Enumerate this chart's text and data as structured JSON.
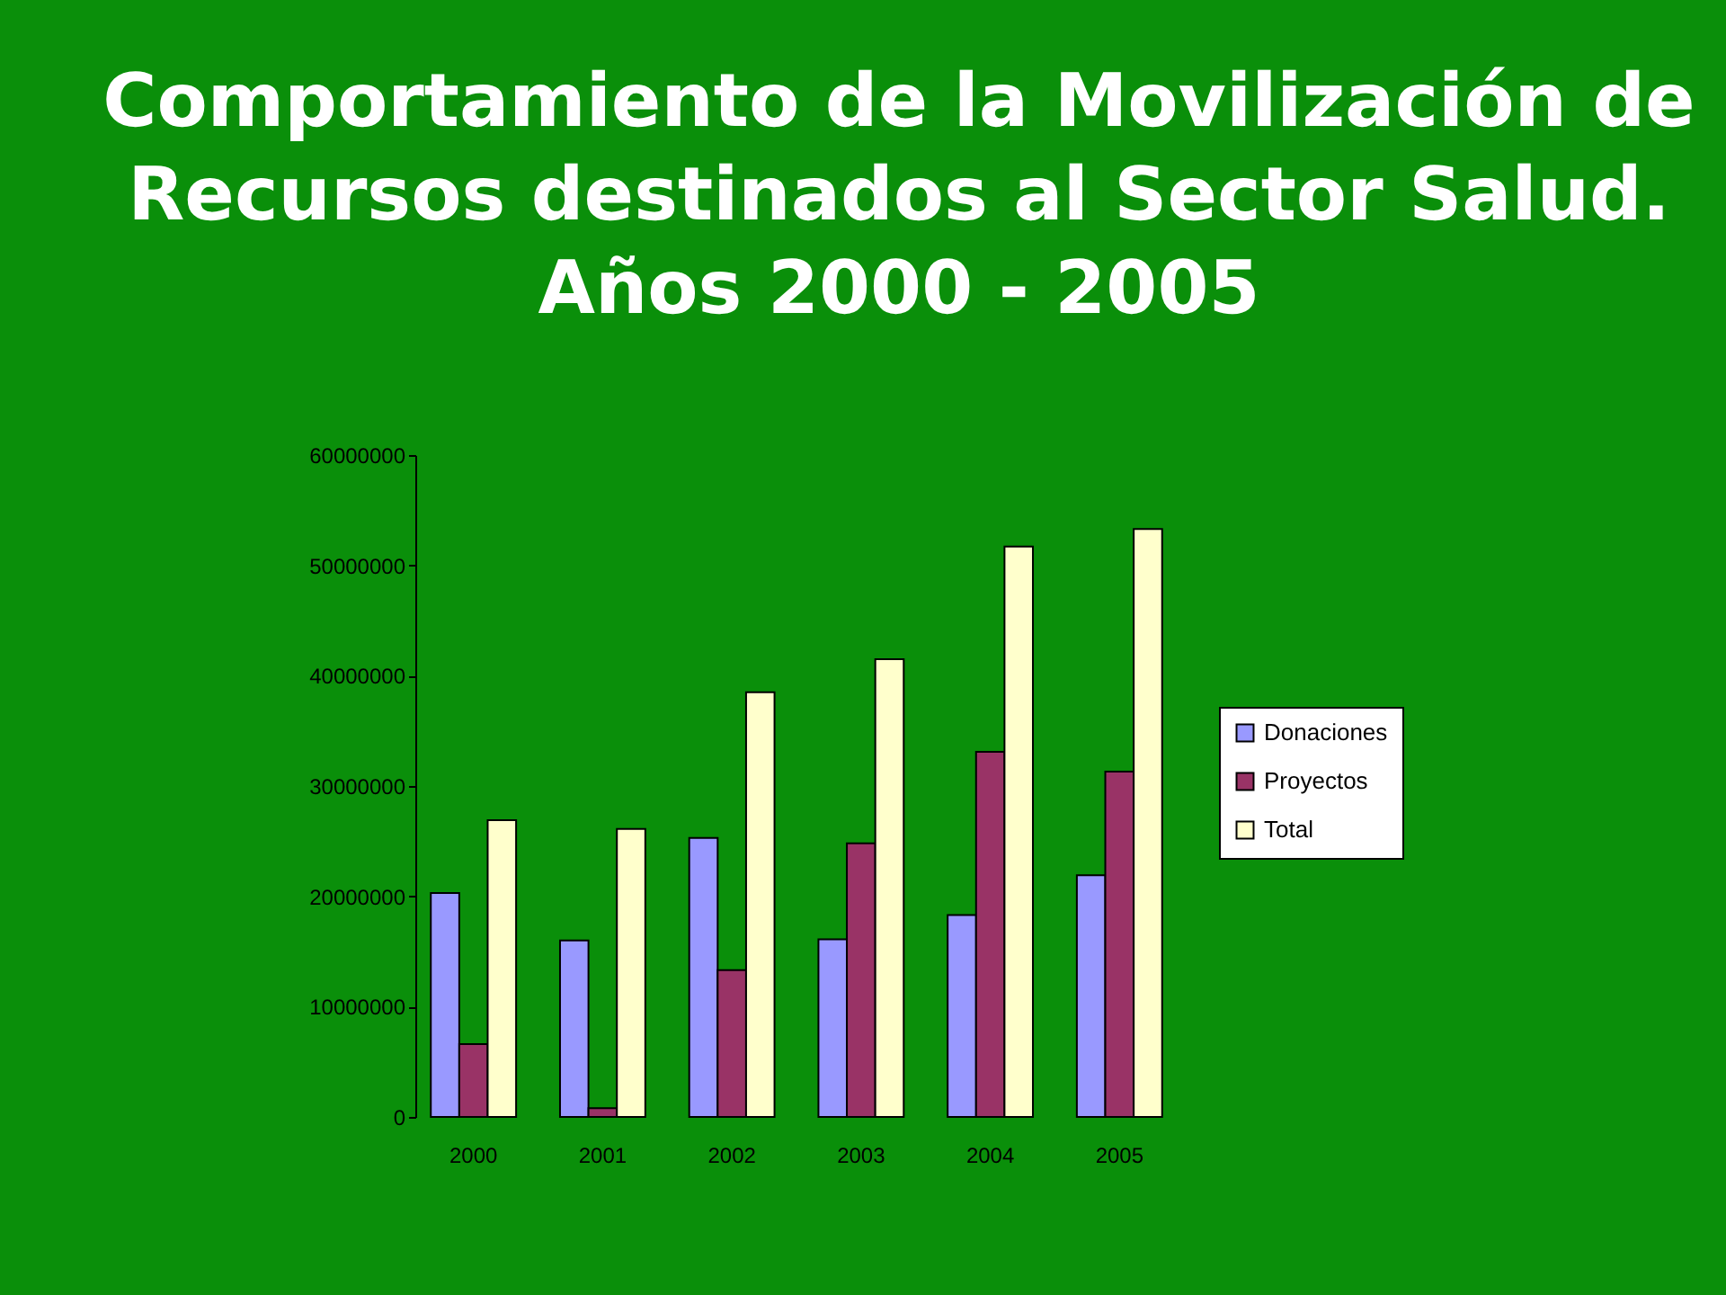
{
  "chart_data": {
    "type": "bar",
    "title": "Comportamiento de la Movilización de\nRecursos destinados al Sector Salud.\nAños 2000 - 2005",
    "categories": [
      "2000",
      "2001",
      "2002",
      "2003",
      "2004",
      "2005"
    ],
    "series": [
      {
        "name": "Donaciones",
        "color": "#9999ff",
        "values": [
          20300000,
          16000000,
          25300000,
          16100000,
          18300000,
          21900000
        ]
      },
      {
        "name": "Proyectos",
        "color": "#993366",
        "values": [
          6600000,
          800000,
          13300000,
          24800000,
          33100000,
          31300000
        ]
      },
      {
        "name": "Total",
        "color": "#ffffcc",
        "values": [
          26900000,
          26100000,
          38500000,
          41500000,
          51700000,
          53300000
        ]
      }
    ],
    "ylim": [
      0,
      60000000
    ],
    "yticks": [
      0,
      10000000,
      20000000,
      30000000,
      40000000,
      50000000,
      60000000
    ],
    "grid": false,
    "legend": "right"
  }
}
